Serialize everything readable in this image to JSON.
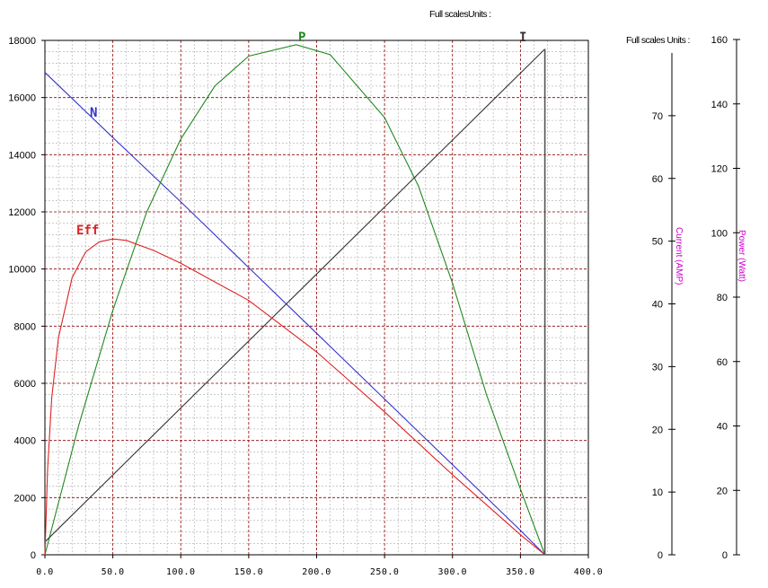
{
  "chart_data": {
    "type": "line",
    "header_main": "Full scalesUnits :",
    "header_right": "Full scales Units :",
    "x_axis": {
      "range": [
        0,
        400
      ],
      "major_step": 50,
      "minor_divisions": 5,
      "tick_labels": [
        "0.0",
        "50.0",
        "100.0",
        "150.0",
        "200.0",
        "250.0",
        "300.0",
        "350.0",
        "400.0"
      ]
    },
    "left_axis": {
      "range": [
        0,
        18000
      ],
      "major_step": 2000,
      "minor_divisions": 5,
      "tick_labels": [
        "0",
        "2000",
        "4000",
        "6000",
        "8000",
        "10000",
        "12000",
        "14000",
        "16000",
        "18000"
      ]
    },
    "current_axis": {
      "label": "Current (AMP)",
      "range": [
        0,
        80
      ],
      "tick_labels": [
        "0",
        "10",
        "20",
        "30",
        "40",
        "50",
        "60",
        "70"
      ],
      "ticks": [
        0,
        10,
        20,
        30,
        40,
        50,
        60,
        70
      ]
    },
    "power_axis": {
      "label": "Power (Watt)",
      "range": [
        0,
        160
      ],
      "tick_labels": [
        "0",
        "20",
        "40",
        "60",
        "80",
        "100",
        "120",
        "140",
        "160"
      ],
      "ticks": [
        0,
        20,
        40,
        60,
        80,
        100,
        120,
        140,
        160
      ]
    },
    "grid": true,
    "colors": {
      "N": "#3333cc",
      "P": "#228822",
      "I": "#333333",
      "Eff": "#dd2222",
      "major_grid": "#8b0000",
      "minor_grid": "#aaaaaa"
    },
    "series": [
      {
        "name": "N",
        "label": "N",
        "color": "#3333cc",
        "points": [
          [
            0,
            16880
          ],
          [
            50,
            14600
          ],
          [
            100,
            12350
          ],
          [
            150,
            10050
          ],
          [
            200,
            7750
          ],
          [
            250,
            5450
          ],
          [
            300,
            3150
          ],
          [
            350,
            850
          ],
          [
            368,
            0
          ]
        ]
      },
      {
        "name": "P",
        "label": "P",
        "color": "#228822",
        "points": [
          [
            0,
            0
          ],
          [
            25,
            4550
          ],
          [
            50,
            8550
          ],
          [
            75,
            12000
          ],
          [
            100,
            14550
          ],
          [
            125,
            16400
          ],
          [
            150,
            17450
          ],
          [
            185,
            17850
          ],
          [
            210,
            17500
          ],
          [
            250,
            15300
          ],
          [
            275,
            12900
          ],
          [
            300,
            9500
          ],
          [
            325,
            5600
          ],
          [
            350,
            2300
          ],
          [
            368,
            0
          ]
        ]
      },
      {
        "name": "I",
        "label": "I",
        "color": "#333333",
        "points": [
          [
            0,
            450
          ],
          [
            368,
            17700
          ]
        ]
      },
      {
        "name": "Eff",
        "label": "Eff",
        "color": "#dd2222",
        "points": [
          [
            0,
            0
          ],
          [
            2,
            3000
          ],
          [
            5,
            5500
          ],
          [
            10,
            7600
          ],
          [
            20,
            9700
          ],
          [
            30,
            10600
          ],
          [
            40,
            10950
          ],
          [
            50,
            11050
          ],
          [
            60,
            11000
          ],
          [
            80,
            10650
          ],
          [
            100,
            10200
          ],
          [
            150,
            8900
          ],
          [
            200,
            7100
          ],
          [
            250,
            5000
          ],
          [
            300,
            2800
          ],
          [
            350,
            700
          ],
          [
            368,
            0
          ]
        ]
      }
    ],
    "end_line": {
      "x": 368,
      "y": 17700
    }
  }
}
